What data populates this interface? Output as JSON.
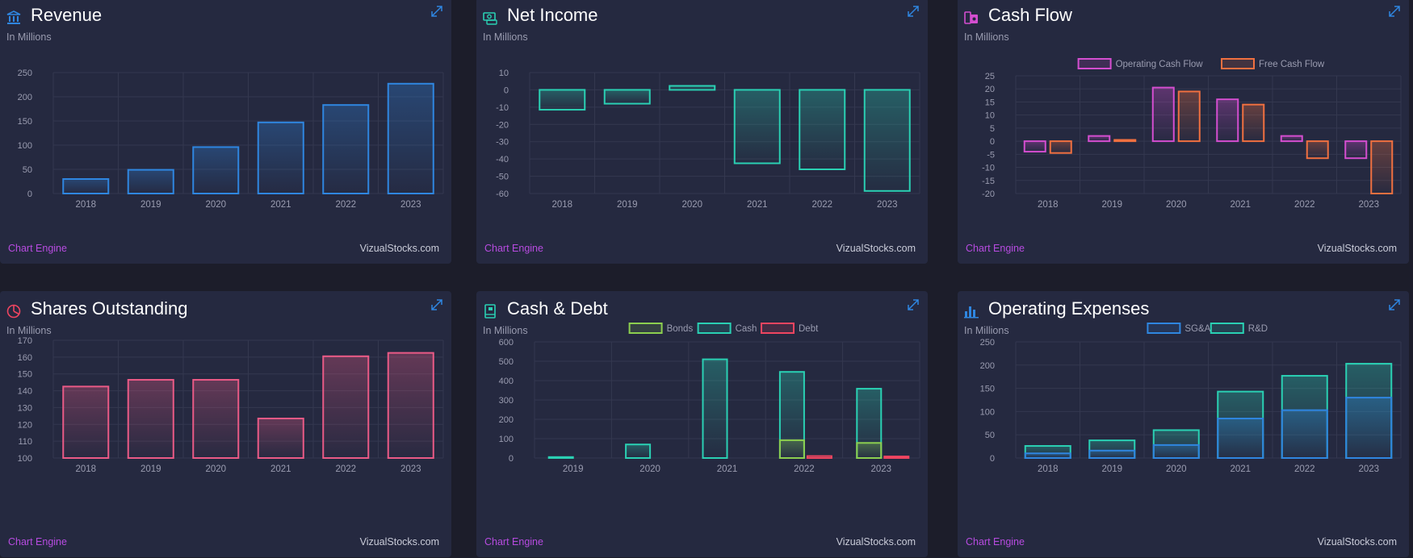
{
  "colors": {
    "blue": "#2f86e0",
    "teal": "#2ad0b3",
    "magenta": "#d44ed0",
    "orange": "#f07040",
    "pink": "#ea5a86",
    "green": "#8ccf4f",
    "red": "#ef4560",
    "title_icon_bank": "#2f86e0",
    "title_icon_money": "#2ad0b3",
    "title_icon_cash": "#d44ed0",
    "title_icon_pie": "#ef4560",
    "title_icon_book": "#2ad0b3",
    "title_icon_bars": "#2f86e0"
  },
  "footer": {
    "engine": "Chart Engine",
    "site": "VizualStocks.com"
  },
  "cards": [
    {
      "title": "Revenue",
      "subtitle": "In Millions",
      "icon": "bank-icon"
    },
    {
      "title": "Net Income",
      "subtitle": "In Millions",
      "icon": "money-icon"
    },
    {
      "title": "Cash Flow",
      "subtitle": "In Millions",
      "icon": "cash-icon"
    },
    {
      "title": "Shares Outstanding",
      "subtitle": "In Millions",
      "icon": "pie-chart-icon"
    },
    {
      "title": "Cash & Debt",
      "subtitle": "In Millions",
      "icon": "book-icon"
    },
    {
      "title": "Operating Expenses",
      "subtitle": "In Millions",
      "icon": "bar-chart-icon"
    }
  ],
  "chart_data": [
    {
      "type": "bar",
      "title": "Revenue",
      "categories": [
        "2018",
        "2019",
        "2020",
        "2021",
        "2022",
        "2023"
      ],
      "series": [
        {
          "color": "#2f86e0",
          "values": [
            30,
            49,
            96,
            147,
            183,
            227
          ]
        }
      ],
      "ylim": [
        0,
        250
      ],
      "yticks": [
        0,
        50,
        100,
        150,
        200,
        250
      ],
      "legend": []
    },
    {
      "type": "bar",
      "title": "Net Income",
      "categories": [
        "2018",
        "2019",
        "2020",
        "2021",
        "2022",
        "2023"
      ],
      "series": [
        {
          "color": "#2ad0b3",
          "values": [
            -11.5,
            -8,
            2.3,
            -42.5,
            -46,
            -58.5
          ]
        }
      ],
      "ylim": [
        -60,
        10
      ],
      "yticks": [
        -60,
        -50,
        -40,
        -30,
        -20,
        -10,
        0,
        10
      ],
      "legend": []
    },
    {
      "type": "bar",
      "title": "Cash Flow",
      "categories": [
        "2018",
        "2019",
        "2020",
        "2021",
        "2022",
        "2023"
      ],
      "series": [
        {
          "name": "Operating Cash Flow",
          "color": "#d44ed0",
          "values": [
            -4,
            2,
            20.5,
            16,
            2,
            -6.5
          ]
        },
        {
          "name": "Free Cash Flow",
          "color": "#f07040",
          "values": [
            -4.5,
            0.5,
            19,
            14,
            -6.5,
            -20
          ]
        }
      ],
      "ylim": [
        -20,
        25
      ],
      "yticks": [
        -20,
        -15,
        -10,
        -5,
        0,
        5,
        10,
        15,
        20,
        25
      ],
      "legend": [
        "Operating Cash Flow",
        "Free Cash Flow"
      ]
    },
    {
      "type": "bar",
      "title": "Shares Outstanding",
      "categories": [
        "2018",
        "2019",
        "2020",
        "2021",
        "2022",
        "2023"
      ],
      "series": [
        {
          "color": "#ea5a86",
          "values": [
            142.5,
            146.5,
            146.5,
            123.5,
            160.5,
            162.5
          ]
        }
      ],
      "ylim": [
        100,
        170
      ],
      "yticks": [
        100,
        110,
        120,
        130,
        140,
        150,
        160,
        170
      ],
      "legend": []
    },
    {
      "type": "bar",
      "title": "Cash & Debt",
      "categories": [
        "2019",
        "2020",
        "2021",
        "2022",
        "2023"
      ],
      "series": [
        {
          "name": "Bonds",
          "color": "#8ccf4f",
          "values": [
            0,
            0,
            0,
            92,
            78
          ]
        },
        {
          "name": "Cash",
          "color": "#2ad0b3",
          "values": [
            5,
            70,
            510,
            445,
            358
          ]
        },
        {
          "name": "Debt",
          "color": "#ef4560",
          "values": [
            0,
            0,
            0,
            10,
            8
          ]
        }
      ],
      "ylim": [
        0,
        600
      ],
      "yticks": [
        0,
        100,
        200,
        300,
        400,
        500,
        600
      ],
      "legend": [
        "Bonds",
        "Cash",
        "Debt"
      ]
    },
    {
      "type": "bar",
      "title": "Operating Expenses",
      "categories": [
        "2018",
        "2019",
        "2020",
        "2021",
        "2022",
        "2023"
      ],
      "series": [
        {
          "name": "SG&A",
          "color": "#2f86e0",
          "values": [
            10,
            16,
            28,
            85,
            103,
            130
          ]
        },
        {
          "name": "R&D",
          "color": "#2ad0b3",
          "values": [
            26,
            38,
            60,
            143,
            177,
            203
          ]
        }
      ],
      "ylim": [
        0,
        250
      ],
      "yticks": [
        0,
        50,
        100,
        150,
        200,
        250
      ],
      "legend": [
        "SG&A",
        "R&D"
      ]
    }
  ]
}
